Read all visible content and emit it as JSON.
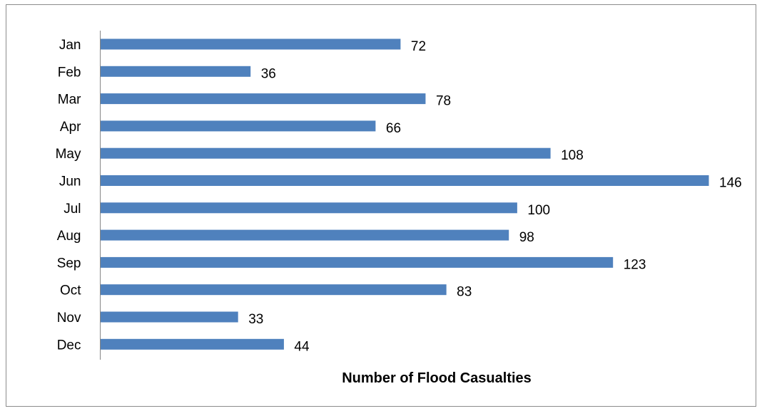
{
  "chart_data": {
    "type": "bar",
    "orientation": "horizontal",
    "categories": [
      "Jan",
      "Feb",
      "Mar",
      "Apr",
      "May",
      "Jun",
      "Jul",
      "Aug",
      "Sep",
      "Oct",
      "Nov",
      "Dec"
    ],
    "values": [
      72,
      36,
      78,
      66,
      108,
      146,
      100,
      98,
      123,
      83,
      33,
      44
    ],
    "title": "",
    "xlabel": "Number of Flood Casualties",
    "ylabel": "",
    "xlim": [
      0,
      146
    ],
    "data_labels": true,
    "grid": false,
    "legend": "none",
    "bar_color": "#4f81bd"
  }
}
